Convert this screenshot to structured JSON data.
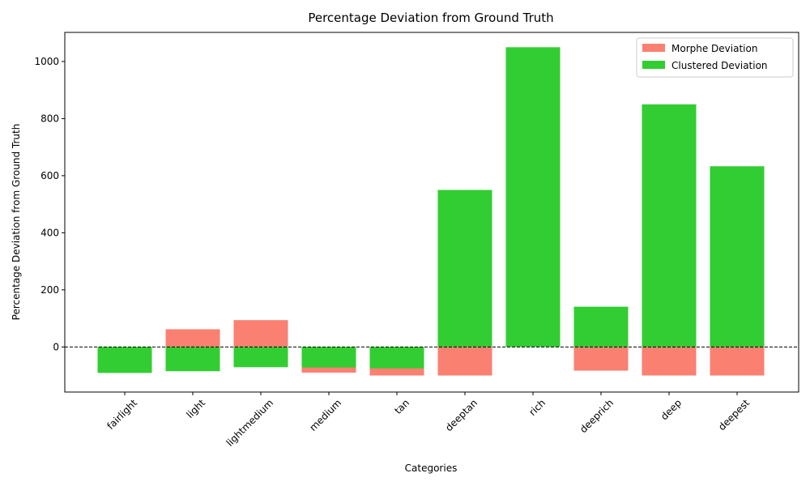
{
  "chart_data": {
    "type": "bar",
    "title": "Percentage Deviation from Ground Truth",
    "xlabel": "Categories",
    "ylabel": "Percentage Deviation from Ground Truth",
    "categories": [
      "fairlight",
      "light",
      "lightmedium",
      "medium",
      "tan",
      "deeptan",
      "rich",
      "deeprich",
      "deep",
      "deepest"
    ],
    "series": [
      {
        "name": "Morphe Deviation",
        "color": "#fa8072",
        "values": [
          -88,
          62,
          94,
          -90,
          -100,
          -100,
          0,
          -83,
          -100,
          -100
        ]
      },
      {
        "name": "Clustered Deviation",
        "color": "#32cd32",
        "values": [
          -91,
          -85,
          -71,
          -72,
          -75,
          550,
          1050,
          141,
          850,
          633
        ]
      }
    ],
    "ylim": [
      -158,
      1102
    ],
    "yticks": [
      0,
      200,
      400,
      600,
      800,
      1000
    ],
    "zero_line": true,
    "legend_position": "top-right",
    "grid": false
  }
}
